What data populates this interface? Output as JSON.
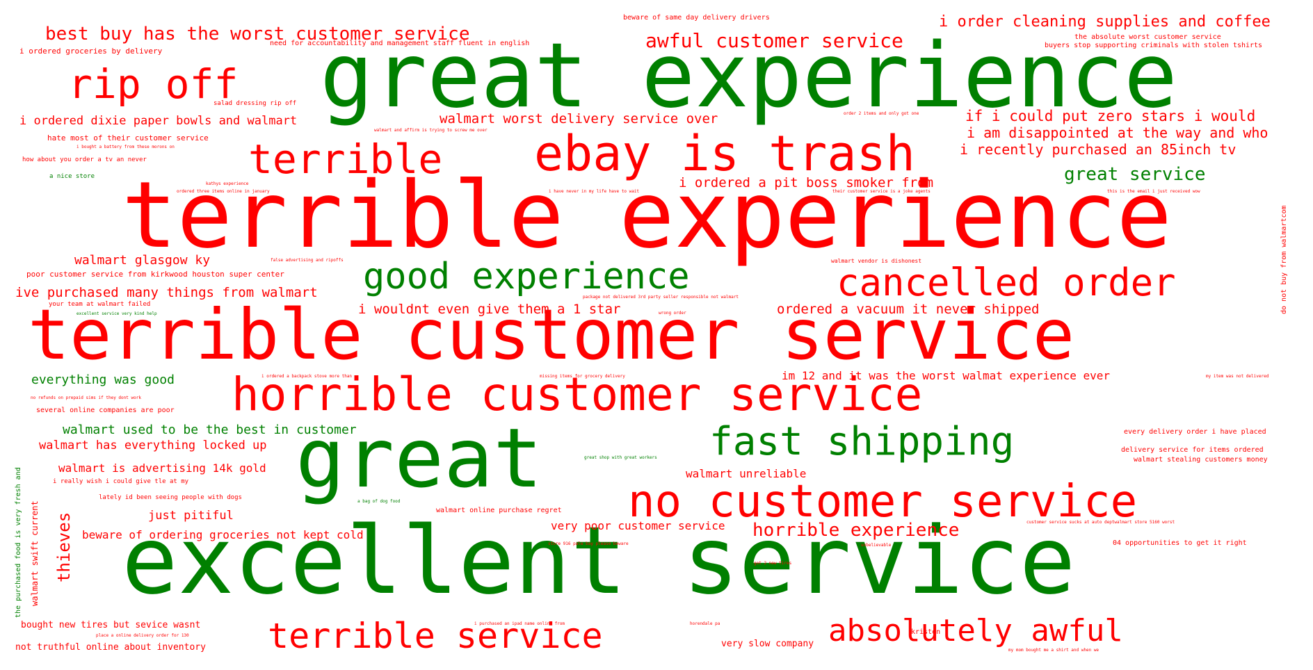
{
  "colors": {
    "positive": "#008000",
    "negative": "#ff0000",
    "background": "#ffffff"
  },
  "words": [
    {
      "id": "w01",
      "text": "great experience",
      "sentiment": "positive",
      "weight": 128
    },
    {
      "id": "w02",
      "text": "terrible experience",
      "sentiment": "negative",
      "weight": 132
    },
    {
      "id": "w03",
      "text": "terrible customer service",
      "sentiment": "negative",
      "weight": 100
    },
    {
      "id": "w04",
      "text": "excellent service",
      "sentiment": "positive",
      "weight": 134
    },
    {
      "id": "w05",
      "text": "great",
      "sentiment": "positive",
      "weight": 118
    },
    {
      "id": "w06",
      "text": "ebay is trash",
      "sentiment": "negative",
      "weight": 70
    },
    {
      "id": "w07",
      "text": "terrible",
      "sentiment": "negative",
      "weight": 58
    },
    {
      "id": "w08",
      "text": "rip off",
      "sentiment": "negative",
      "weight": 58
    },
    {
      "id": "w09",
      "text": "horrible customer service",
      "sentiment": "negative",
      "weight": 66
    },
    {
      "id": "w10",
      "text": "no customer service",
      "sentiment": "negative",
      "weight": 64
    },
    {
      "id": "w11",
      "text": "fast shipping",
      "sentiment": "positive",
      "weight": 56
    },
    {
      "id": "w12",
      "text": "good experience",
      "sentiment": "positive",
      "weight": 52
    },
    {
      "id": "w13",
      "text": "cancelled order",
      "sentiment": "negative",
      "weight": 54
    },
    {
      "id": "w14",
      "text": "terrible service",
      "sentiment": "negative",
      "weight": 50
    },
    {
      "id": "w15",
      "text": "absolutely awful",
      "sentiment": "negative",
      "weight": 44
    },
    {
      "id": "w16",
      "text": "best buy has the worst customer service",
      "sentiment": "negative",
      "weight": 26
    },
    {
      "id": "w17",
      "text": "awful customer service",
      "sentiment": "negative",
      "weight": 28
    },
    {
      "id": "w18",
      "text": "i order cleaning supplies and coffee",
      "sentiment": "negative",
      "weight": 22
    },
    {
      "id": "w19",
      "text": "great service",
      "sentiment": "positive",
      "weight": 26
    },
    {
      "id": "w20",
      "text": "horrible experience",
      "sentiment": "negative",
      "weight": 26
    },
    {
      "id": "w21",
      "text": "if i could put zero stars i would",
      "sentiment": "negative",
      "weight": 21
    },
    {
      "id": "w22",
      "text": "i am disappointed at the way and who",
      "sentiment": "negative",
      "weight": 20
    },
    {
      "id": "w23",
      "text": "i recently purchased an 85inch tv",
      "sentiment": "negative",
      "weight": 20
    },
    {
      "id": "w24",
      "text": "i ordered a pit boss smoker from",
      "sentiment": "negative",
      "weight": 19
    },
    {
      "id": "w25",
      "text": "walmart  worst delivery service over",
      "sentiment": "negative",
      "weight": 19
    },
    {
      "id": "w26",
      "text": "i ordered dixie paper bowls and walmart",
      "sentiment": "negative",
      "weight": 17
    },
    {
      "id": "w27",
      "text": "walmart glasgow ky",
      "sentiment": "negative",
      "weight": 18
    },
    {
      "id": "w28",
      "text": "ive purchased many things from walmart",
      "sentiment": "negative",
      "weight": 19
    },
    {
      "id": "w29",
      "text": "i wouldnt even give them a 1 star",
      "sentiment": "negative",
      "weight": 19
    },
    {
      "id": "w30",
      "text": "ordered a vacuum it never shipped",
      "sentiment": "negative",
      "weight": 19
    },
    {
      "id": "w31",
      "text": "everything was good",
      "sentiment": "positive",
      "weight": 18
    },
    {
      "id": "w32",
      "text": "im 12 and it was the worst walmat experience ever",
      "sentiment": "negative",
      "weight": 16
    },
    {
      "id": "w33",
      "text": "walmart used to be the best in customer",
      "sentiment": "positive",
      "weight": 18
    },
    {
      "id": "w34",
      "text": "walmart has everything locked up",
      "sentiment": "negative",
      "weight": 17
    },
    {
      "id": "w35",
      "text": "walmart is advertising 14k gold",
      "sentiment": "negative",
      "weight": 16
    },
    {
      "id": "w36",
      "text": "walmart unreliable",
      "sentiment": "negative",
      "weight": 16
    },
    {
      "id": "w37",
      "text": "just pitiful",
      "sentiment": "negative",
      "weight": 17
    },
    {
      "id": "w38",
      "text": "beware of ordering groceries not kept cold",
      "sentiment": "negative",
      "weight": 16
    },
    {
      "id": "w39",
      "text": "very poor customer service",
      "sentiment": "negative",
      "weight": 16
    },
    {
      "id": "w40",
      "text": "thieves",
      "sentiment": "negative",
      "weight": 24,
      "vertical": true
    },
    {
      "id": "w41",
      "text": "bought new tires but sevice wasnt",
      "sentiment": "negative",
      "weight": 13
    },
    {
      "id": "w42",
      "text": "not truthful online about inventory",
      "sentiment": "negative",
      "weight": 13
    },
    {
      "id": "w43",
      "text": "very slow company",
      "sentiment": "negative",
      "weight": 13
    },
    {
      "id": "w44",
      "text": "poor customer service from kirkwood houston super center",
      "sentiment": "negative",
      "weight": 11
    },
    {
      "id": "w45",
      "text": "hate most of their customer service",
      "sentiment": "negative",
      "weight": 11
    },
    {
      "id": "w46",
      "text": "i ordered groceries by delivery",
      "sentiment": "negative",
      "weight": 11
    },
    {
      "id": "w47",
      "text": "need for accountability and management staff fluent in english",
      "sentiment": "negative",
      "weight": 10
    },
    {
      "id": "w48",
      "text": "beware of same day delivery drivers",
      "sentiment": "negative",
      "weight": 10
    },
    {
      "id": "w49",
      "text": "the absolute worst customer service",
      "sentiment": "negative",
      "weight": 10
    },
    {
      "id": "w50",
      "text": "buyers stop supporting criminals with stolen tshirts",
      "sentiment": "negative",
      "weight": 10
    },
    {
      "id": "w51",
      "text": "salad dressing rip off",
      "sentiment": "negative",
      "weight": 9
    },
    {
      "id": "w52",
      "text": "how about you order a tv an never",
      "sentiment": "negative",
      "weight": 9
    },
    {
      "id": "w53",
      "text": "a nice store",
      "sentiment": "positive",
      "weight": 9
    },
    {
      "id": "w54",
      "text": "several online companies are poor",
      "sentiment": "negative",
      "weight": 10
    },
    {
      "id": "w55",
      "text": "every delivery order i have placed",
      "sentiment": "negative",
      "weight": 10
    },
    {
      "id": "w56",
      "text": "delivery service for items ordered",
      "sentiment": "negative",
      "weight": 10
    },
    {
      "id": "w57",
      "text": "walmart stealing customers money",
      "sentiment": "negative",
      "weight": 10
    },
    {
      "id": "w58",
      "text": "i really wish i could give tle at my",
      "sentiment": "negative",
      "weight": 9
    },
    {
      "id": "w59",
      "text": "lately id been seeing people with dogs",
      "sentiment": "negative",
      "weight": 9
    },
    {
      "id": "w60",
      "text": "walmart online purchase regret",
      "sentiment": "negative",
      "weight": 10
    },
    {
      "id": "w61",
      "text": "04 opportunities to get it right",
      "sentiment": "negative",
      "weight": 10
    },
    {
      "id": "w62",
      "text": "kristen",
      "sentiment": "negative",
      "weight": 10
    },
    {
      "id": "w63",
      "text": "walmart vendor is dishonest",
      "sentiment": "negative",
      "weight": 8
    },
    {
      "id": "w64",
      "text": "your team at walmart failed",
      "sentiment": "negative",
      "weight": 9
    },
    {
      "id": "w65",
      "text": "do not buy from walmartcom",
      "sentiment": "negative",
      "weight": 10,
      "vertical": true
    },
    {
      "id": "w66",
      "text": "the purchased food is very fresh and",
      "sentiment": "positive",
      "weight": 10,
      "vertical": true
    },
    {
      "id": "w67",
      "text": "walmart swift current",
      "sentiment": "negative",
      "weight": 12,
      "vertical": true
    },
    {
      "id": "w68",
      "text": "order 2 items and only got one",
      "sentiment": "negative",
      "weight": 6
    },
    {
      "id": "w69",
      "text": "walmart and affirm is trying to screw me over",
      "sentiment": "negative",
      "weight": 6
    },
    {
      "id": "w70",
      "text": "i bought a battery from these morons on",
      "sentiment": "negative",
      "weight": 6
    },
    {
      "id": "w71",
      "text": "kathys experience",
      "sentiment": "negative",
      "weight": 6
    },
    {
      "id": "w72",
      "text": "ordered three items online in january",
      "sentiment": "negative",
      "weight": 6
    },
    {
      "id": "w73",
      "text": "i have never in my life have to wait",
      "sentiment": "negative",
      "weight": 6
    },
    {
      "id": "w74",
      "text": "their customer service is a joke agents",
      "sentiment": "negative",
      "weight": 6
    },
    {
      "id": "w75",
      "text": "this is the email i just received wow",
      "sentiment": "negative",
      "weight": 6
    },
    {
      "id": "w76",
      "text": "false advertising and ripoffs",
      "sentiment": "negative",
      "weight": 6
    },
    {
      "id": "w77",
      "text": "package not delivered 3rd party seller responsible not walmart",
      "sentiment": "negative",
      "weight": 6
    },
    {
      "id": "w78",
      "text": "excellent service very kind  help",
      "sentiment": "positive",
      "weight": 6
    },
    {
      "id": "w79",
      "text": "wrong order",
      "sentiment": "negative",
      "weight": 6
    },
    {
      "id": "w80",
      "text": "i ordered a backpack stove more than",
      "sentiment": "negative",
      "weight": 6
    },
    {
      "id": "w81",
      "text": "missing items for grocery delivery",
      "sentiment": "negative",
      "weight": 6
    },
    {
      "id": "w82",
      "text": "my item was not delivered",
      "sentiment": "negative",
      "weight": 6
    },
    {
      "id": "w83",
      "text": "no refunds on prepaid sims if they dont work",
      "sentiment": "negative",
      "weight": 6
    },
    {
      "id": "w84",
      "text": "great shop with great workers",
      "sentiment": "positive",
      "weight": 6
    },
    {
      "id": "w85",
      "text": "a bag of dog food",
      "sentiment": "positive",
      "weight": 6
    },
    {
      "id": "w86",
      "text": "customer service sucks at auto deptwalmart store 5160 worst",
      "sentiment": "negative",
      "weight": 6
    },
    {
      "id": "w87",
      "text": "store 916 pale bay please beware",
      "sentiment": "negative",
      "weight": 6
    },
    {
      "id": "w88",
      "text": "unbelievable",
      "sentiment": "negative",
      "weight": 6
    },
    {
      "id": "w89",
      "text": "got 2 new tires",
      "sentiment": "negative",
      "weight": 6
    },
    {
      "id": "w90",
      "text": "i purchased an ipad name online from",
      "sentiment": "negative",
      "weight": 6
    },
    {
      "id": "w91",
      "text": "horendale pa",
      "sentiment": "negative",
      "weight": 6
    },
    {
      "id": "w92",
      "text": "place a online delivery order for 130",
      "sentiment": "negative",
      "weight": 6
    },
    {
      "id": "w93",
      "text": "my mom bought me a shirt and when we",
      "sentiment": "negative",
      "weight": 6
    }
  ]
}
